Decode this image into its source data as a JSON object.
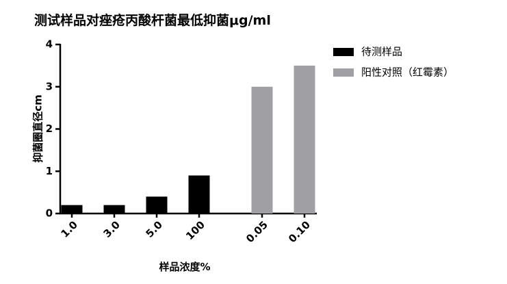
{
  "chart_data": {
    "type": "bar",
    "title": "测试样品对痤疮丙酸杆菌最低抑菌μg/ml",
    "y_label": "抑菌圈直径cm",
    "x_label": "样品浓度%",
    "categories": [
      "1.0",
      "3.0",
      "5.0",
      "100",
      "0.05",
      "0.10"
    ],
    "series": [
      {
        "name": "待测样品",
        "color": "#000000",
        "values": [
          0.2,
          0.2,
          0.4,
          0.9,
          null,
          null
        ]
      },
      {
        "name": "阳性对照（红霉素）",
        "color": "#a0a0a4",
        "values": [
          null,
          null,
          null,
          null,
          3.0,
          3.5
        ]
      }
    ],
    "ylim": [
      0,
      4
    ],
    "yticks": [
      0,
      1,
      2,
      3,
      4
    ],
    "legend": "right"
  }
}
